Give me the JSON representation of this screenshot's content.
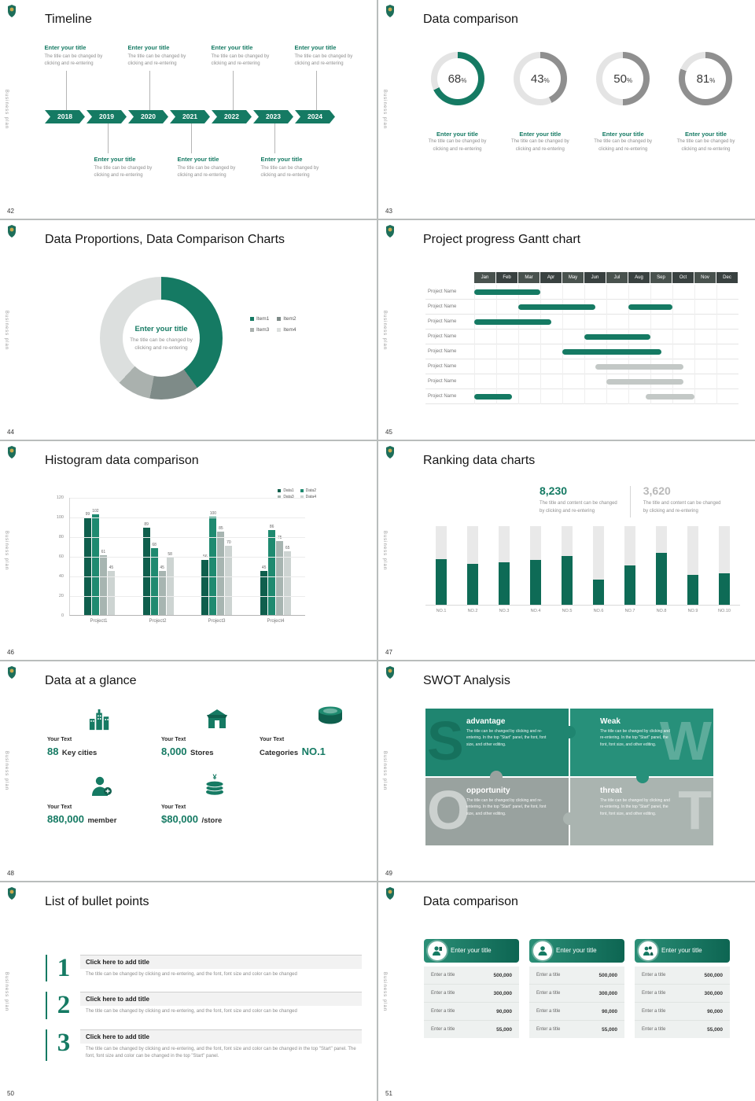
{
  "common": {
    "vertical_label": "Business plan",
    "accent": "#157a63"
  },
  "slides": {
    "timeline": {
      "page": "42",
      "title": "Timeline",
      "years": [
        "2018",
        "2019",
        "2020",
        "2021",
        "2022",
        "2023",
        "2024"
      ],
      "item_title": "Enter your title",
      "item_desc1": "The title can be changed by",
      "item_desc2": "clicking and re-entering"
    },
    "rings": {
      "page": "43",
      "title": "Data comparison",
      "item_title": "Enter your title",
      "item_desc1": "The title can be changed by",
      "item_desc2": "clicking and re-entering"
    },
    "proportions": {
      "page": "44",
      "title": "Data Proportions, Data Comparison Charts",
      "center_title": "Enter your title",
      "center_desc1": "The title can be changed by",
      "center_desc2": "clicking and re-entering"
    },
    "gantt": {
      "page": "45",
      "title": "Project progress Gantt chart",
      "row_label": "Project Name"
    },
    "histogram": {
      "page": "46",
      "title": "Histogram data comparison"
    },
    "ranking": {
      "page": "47",
      "title": "Ranking data charts",
      "stat1_value": "8,230",
      "stat1_desc1": "The title and content can be changed",
      "stat1_desc2": "by clicking and re-entering",
      "stat2_value": "3,620",
      "stat2_desc1": "The title and content can be changed",
      "stat2_desc2": "by clicking and re-entering"
    },
    "glance": {
      "page": "48",
      "title": "Data at a glance",
      "items": [
        {
          "prefix": "Your Text",
          "value": "88",
          "label": "Key cities"
        },
        {
          "prefix": "Your Text",
          "value": "8,000",
          "label": "Stores"
        },
        {
          "prefix": "Your Text",
          "label": "Categories",
          "value": "NO.1"
        },
        {
          "prefix": "Your Text",
          "value": "880,000",
          "label": "member"
        },
        {
          "prefix": "Your Text",
          "value": "$80,000",
          "label": "/store"
        }
      ]
    },
    "swot": {
      "page": "49",
      "title": "SWOT Analysis",
      "quads": [
        {
          "letter": "S",
          "title": "advantage",
          "desc": "The title can be changed by clicking and re-entering. In the top \"Start\" panel, the font, font size, and other editing."
        },
        {
          "letter": "W",
          "title": "Weak",
          "desc": "The title can be changed by clicking and re-entering. In the top \"Start\" panel, the font, font size, and other editing."
        },
        {
          "letter": "O",
          "title": "opportunity",
          "desc": "The title can be changed by clicking and re-entering. In the top \"Start\" panel, the font, font size, and other editing."
        },
        {
          "letter": "T",
          "title": "threat",
          "desc": "The title can be changed by clicking and re-entering. In the top \"Start\" panel, the font, font size, and other editing."
        }
      ]
    },
    "bullets": {
      "page": "50",
      "title": "List of bullet points",
      "items": [
        {
          "num": "1",
          "title": "Click here to add title",
          "desc": "The title can be changed by clicking and re-entering, and the font, font size and color can be changed"
        },
        {
          "num": "2",
          "title": "Click here to add title",
          "desc": "The title can be changed by clicking and re-entering, and the font, font size and color can be changed"
        },
        {
          "num": "3",
          "title": "Click here to add title",
          "desc": "The title can be changed by clicking and re-entering, and the font, font size and color can be changed in the top \"Start\" panel. The font, font size and color can be changed in the top \"Start\" panel."
        }
      ]
    },
    "cards": {
      "page": "51",
      "title": "Data comparison",
      "card_title": "Enter your title",
      "row_label": "Enter a title",
      "values": [
        "500,000",
        "300,000",
        "90,000",
        "55,000"
      ]
    }
  },
  "chart_data": [
    {
      "id": "progress-rings",
      "type": "pie",
      "title": "Data comparison",
      "values": [
        68,
        43,
        50,
        81
      ],
      "arc_colors": [
        "#157a63",
        "#8f8f8f",
        "#8f8f8f",
        "#8f8f8f"
      ],
      "track_color": "#e4e4e4"
    },
    {
      "id": "donut-proportions",
      "type": "pie",
      "title": "Data Proportions, Data Comparison Charts",
      "labels": [
        "Item1",
        "Item2",
        "Item3",
        "Item4"
      ],
      "values": [
        40,
        13,
        9,
        38
      ],
      "colors": [
        "#157a63",
        "#7e8b88",
        "#aab1ae",
        "#dcdfde"
      ]
    },
    {
      "id": "gantt",
      "type": "gantt",
      "months": [
        "Jan",
        "Feb",
        "Mar",
        "Apr",
        "May",
        "Jun",
        "Jul",
        "Aug",
        "Sep",
        "Oct",
        "Nov",
        "Dec"
      ],
      "rows": [
        {
          "label": "Project Name",
          "bars": [
            {
              "start": 0,
              "span": 3,
              "color": "green"
            }
          ]
        },
        {
          "label": "Project Name",
          "bars": [
            {
              "start": 2,
              "span": 3.5,
              "color": "green"
            },
            {
              "start": 7,
              "span": 2,
              "color": "green"
            }
          ]
        },
        {
          "label": "Project Name",
          "bars": [
            {
              "start": 0,
              "span": 3.5,
              "color": "green"
            }
          ]
        },
        {
          "label": "Project Name",
          "bars": [
            {
              "start": 5,
              "span": 3,
              "color": "green"
            }
          ]
        },
        {
          "label": "Project Name",
          "bars": [
            {
              "start": 4,
              "span": 4.5,
              "color": "green"
            }
          ]
        },
        {
          "label": "Project Name",
          "bars": [
            {
              "start": 5.5,
              "span": 4,
              "color": "gray"
            }
          ]
        },
        {
          "label": "Project Name",
          "bars": [
            {
              "start": 6,
              "span": 3.5,
              "color": "gray"
            }
          ]
        },
        {
          "label": "Project Name",
          "bars": [
            {
              "start": 0,
              "span": 1.7,
              "color": "green"
            },
            {
              "start": 7.8,
              "span": 2.2,
              "color": "gray"
            }
          ]
        }
      ]
    },
    {
      "id": "histogram",
      "type": "bar",
      "title": "Histogram data comparison",
      "categories": [
        "Project1",
        "Project2",
        "Project3",
        "Project4"
      ],
      "series": [
        {
          "name": "Data1",
          "color": "#0f5f4d",
          "values": [
            99,
            89,
            56,
            45
          ]
        },
        {
          "name": "Data2",
          "color": "#1f8a70",
          "values": [
            102,
            68,
            100,
            86
          ]
        },
        {
          "name": "Data3",
          "color": "#a7b5b1",
          "values": [
            61,
            45,
            85,
            75
          ]
        },
        {
          "name": "Data4",
          "color": "#cdd4d2",
          "values": [
            45,
            58,
            70,
            65
          ]
        }
      ],
      "ylim": [
        0,
        120
      ],
      "yticks": [
        0,
        20,
        40,
        60,
        80,
        100,
        120
      ]
    },
    {
      "id": "ranking",
      "type": "bar",
      "title": "Ranking data charts",
      "categories": [
        "NO.1",
        "NO.2",
        "NO.3",
        "NO.4",
        "NO.5",
        "NO.6",
        "NO.7",
        "NO.8",
        "NO.9",
        "NO.10"
      ],
      "values": [
        58,
        52,
        54,
        57,
        62,
        32,
        50,
        66,
        38,
        40
      ],
      "ymax": 100,
      "fill_color": "#0e6b56",
      "track_color": "#e9e9e9",
      "annotations": [
        "8,230",
        "3,620"
      ]
    }
  ]
}
